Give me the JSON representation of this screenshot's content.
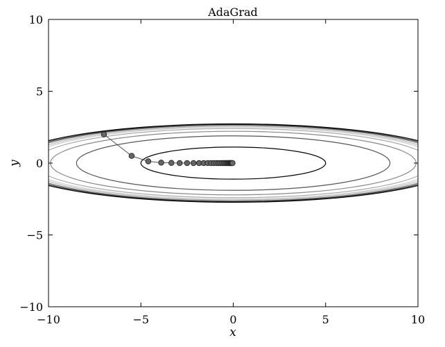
{
  "chart_data": {
    "type": "line",
    "title": "AdaGrad",
    "xlabel": "x",
    "ylabel": "y",
    "xlim": [
      -10,
      10
    ],
    "ylim": [
      -10,
      10
    ],
    "xticks": [
      -10,
      -5,
      0,
      5,
      10
    ],
    "yticks": [
      -10,
      -5,
      0,
      5,
      10
    ],
    "xtick_labels": [
      "−10",
      "−5",
      "0",
      "5",
      "10"
    ],
    "ytick_labels": [
      "−10",
      "−5",
      "0",
      "5",
      "10"
    ],
    "grid": false,
    "contours": {
      "function": "x^2/20 + y^2",
      "levels": [
        {
          "value": 1.25,
          "color": "#000000"
        },
        {
          "value": 3.6,
          "color": "#555555"
        },
        {
          "value": 4.9,
          "color": "#888888"
        },
        {
          "value": 5.8,
          "color": "#aaaaaa"
        },
        {
          "value": 6.3,
          "color": "#cccccc"
        },
        {
          "value": 6.6,
          "color": "#bbbbbb"
        },
        {
          "value": 6.95,
          "color": "#777777"
        },
        {
          "value": 7.2,
          "color": "#333333"
        },
        {
          "value": 7.45,
          "color": "#000000"
        }
      ]
    },
    "series": [
      {
        "x": [
          -7.0,
          -5.5,
          -4.6,
          -3.9,
          -3.35,
          -2.9,
          -2.5,
          -2.15,
          -1.85,
          -1.6,
          -1.38,
          -1.2,
          -1.05,
          -0.92,
          -0.8,
          -0.7,
          -0.6,
          -0.52,
          -0.45,
          -0.38,
          -0.32,
          -0.27,
          -0.22,
          -0.18,
          -0.14,
          -0.1,
          -0.07,
          -0.04
        ],
        "y": [
          2.0,
          0.5,
          0.12,
          0.03,
          0.01,
          0.0,
          0.0,
          0.0,
          0.0,
          0.0,
          0.0,
          0.0,
          0.0,
          0.0,
          0.0,
          0.0,
          0.0,
          0.0,
          0.0,
          0.0,
          0.0,
          0.0,
          0.0,
          0.0,
          0.0,
          0.0,
          0.0,
          0.0
        ],
        "marker_color": "#666666",
        "line_color": "#555555"
      }
    ]
  }
}
